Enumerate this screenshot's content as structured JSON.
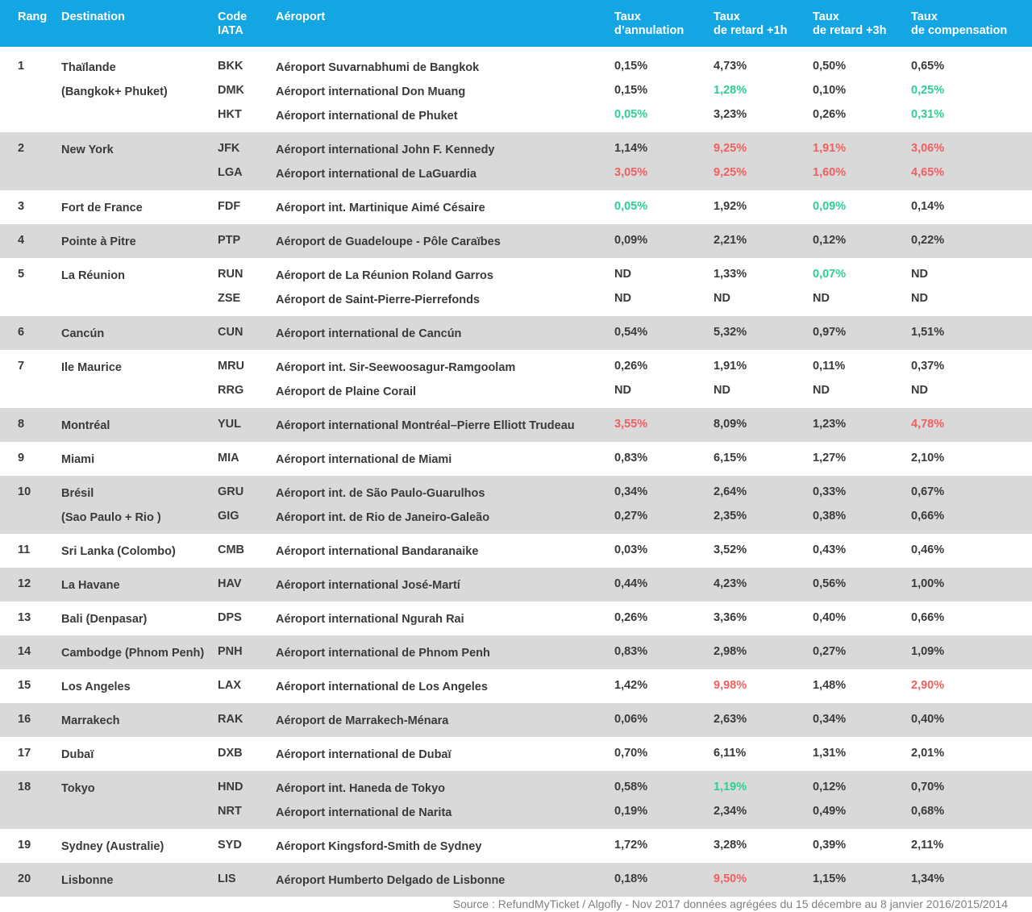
{
  "header": {
    "rang": "Rang",
    "destination": "Destination",
    "code_line1": "Code",
    "code_line2": "IATA",
    "aeroport": "Aéroport",
    "annulation_line1": "Taux",
    "annulation_line2": "d’annulation",
    "retard1h_line1": "Taux",
    "retard1h_line2": "de retard +1h",
    "retard3h_line1": "Taux",
    "retard3h_line2": "de retard +3h",
    "compensation_line1": "Taux",
    "compensation_line2": "de compensation"
  },
  "colors": {
    "header_bg": "#14a6e3",
    "shaded_row": "#d9d9d9",
    "good": "#2ecf91",
    "bad": "#f06060",
    "text": "#3a3a3a"
  },
  "groups": [
    {
      "rank": "1",
      "destination": [
        "Thaïlande",
        "(Bangkok+ Phuket)"
      ],
      "shaded": false,
      "rows": [
        {
          "code": "BKK",
          "airport": "Aéroport Suvarnabhumi de Bangkok",
          "annulation": "0,15%",
          "retard1h": "4,73%",
          "retard3h": "0,50%",
          "compensation": "0,65%",
          "hl": {}
        },
        {
          "code": "DMK",
          "airport": "Aéroport international Don Muang",
          "annulation": "0,15%",
          "retard1h": "1,28%",
          "retard3h": "0,10%",
          "compensation": "0,25%",
          "hl": {
            "retard1h": "green",
            "compensation": "green"
          }
        },
        {
          "code": "HKT",
          "airport": "Aéroport international de Phuket",
          "annulation": "0,05%",
          "retard1h": "3,23%",
          "retard3h": "0,26%",
          "compensation": "0,31%",
          "hl": {
            "annulation": "green",
            "compensation": "green"
          }
        }
      ]
    },
    {
      "rank": "2",
      "destination": [
        "New York"
      ],
      "shaded": true,
      "rows": [
        {
          "code": "JFK",
          "airport": "Aéroport international John F. Kennedy",
          "annulation": "1,14%",
          "retard1h": "9,25%",
          "retard3h": "1,91%",
          "compensation": "3,06%",
          "hl": {
            "retard1h": "red",
            "retard3h": "red",
            "compensation": "red"
          }
        },
        {
          "code": "LGA",
          "airport": "Aéroport international de LaGuardia",
          "annulation": "3,05%",
          "retard1h": "9,25%",
          "retard3h": "1,60%",
          "compensation": "4,65%",
          "hl": {
            "annulation": "red",
            "retard1h": "red",
            "retard3h": "red",
            "compensation": "red"
          }
        }
      ]
    },
    {
      "rank": "3",
      "destination": [
        "Fort de France"
      ],
      "shaded": false,
      "rows": [
        {
          "code": "FDF",
          "airport": "Aéroport int. Martinique Aimé Césaire",
          "annulation": "0,05%",
          "retard1h": "1,92%",
          "retard3h": "0,09%",
          "compensation": "0,14%",
          "hl": {
            "annulation": "green",
            "retard3h": "green"
          }
        }
      ]
    },
    {
      "rank": "4",
      "destination": [
        "Pointe à Pitre"
      ],
      "shaded": true,
      "rows": [
        {
          "code": "PTP",
          "airport": "Aéroport de Guadeloupe - Pôle Caraïbes",
          "annulation": "0,09%",
          "retard1h": "2,21%",
          "retard3h": "0,12%",
          "compensation": "0,22%",
          "hl": {}
        }
      ]
    },
    {
      "rank": "5",
      "destination": [
        "La Réunion"
      ],
      "shaded": false,
      "rows": [
        {
          "code": "RUN",
          "airport": "Aéroport de La Réunion Roland Garros",
          "annulation": "ND",
          "retard1h": "1,33%",
          "retard3h": "0,07%",
          "compensation": "ND",
          "hl": {
            "retard3h": "green"
          }
        },
        {
          "code": "ZSE",
          "airport": "Aéroport de Saint-Pierre-Pierrefonds",
          "annulation": "ND",
          "retard1h": "ND",
          "retard3h": "ND",
          "compensation": "ND",
          "hl": {}
        }
      ]
    },
    {
      "rank": "6",
      "destination": [
        "Cancún"
      ],
      "shaded": true,
      "rows": [
        {
          "code": "CUN",
          "airport": "Aéroport international de Cancún",
          "annulation": "0,54%",
          "retard1h": "5,32%",
          "retard3h": "0,97%",
          "compensation": "1,51%",
          "hl": {}
        }
      ]
    },
    {
      "rank": "7",
      "destination": [
        "Ile Maurice"
      ],
      "shaded": false,
      "rows": [
        {
          "code": "MRU",
          "airport": "Aéroport int. Sir-Seewoosagur-Ramgoolam",
          "annulation": "0,26%",
          "retard1h": "1,91%",
          "retard3h": "0,11%",
          "compensation": "0,37%",
          "hl": {}
        },
        {
          "code": "RRG",
          "airport": "Aéroport de Plaine Corail",
          "annulation": "ND",
          "retard1h": "ND",
          "retard3h": "ND",
          "compensation": "ND",
          "hl": {}
        }
      ]
    },
    {
      "rank": "8",
      "destination": [
        "Montréal"
      ],
      "shaded": true,
      "rows": [
        {
          "code": "YUL",
          "airport": "Aéroport international Montréal–Pierre Elliott Trudeau",
          "annulation": "3,55%",
          "retard1h": "8,09%",
          "retard3h": "1,23%",
          "compensation": "4,78%",
          "hl": {
            "annulation": "red",
            "compensation": "red"
          }
        }
      ]
    },
    {
      "rank": "9",
      "destination": [
        "Miami"
      ],
      "shaded": false,
      "rows": [
        {
          "code": "MIA",
          "airport": "Aéroport international de Miami",
          "annulation": "0,83%",
          "retard1h": "6,15%",
          "retard3h": "1,27%",
          "compensation": "2,10%",
          "hl": {}
        }
      ]
    },
    {
      "rank": "10",
      "destination": [
        "Brésil",
        "(Sao Paulo + Rio )"
      ],
      "shaded": true,
      "rows": [
        {
          "code": "GRU",
          "airport": "Aéroport int. de São Paulo-Guarulhos",
          "annulation": "0,34%",
          "retard1h": "2,64%",
          "retard3h": "0,33%",
          "compensation": "0,67%",
          "hl": {}
        },
        {
          "code": "GIG",
          "airport": "Aéroport int. de Rio de Janeiro-Galeão",
          "annulation": "0,27%",
          "retard1h": "2,35%",
          "retard3h": "0,38%",
          "compensation": "0,66%",
          "hl": {}
        }
      ]
    },
    {
      "rank": "11",
      "destination": [
        "Sri Lanka (Colombo)"
      ],
      "shaded": false,
      "rows": [
        {
          "code": "CMB",
          "airport": "Aéroport international Bandaranaike",
          "annulation": "0,03%",
          "retard1h": "3,52%",
          "retard3h": "0,43%",
          "compensation": "0,46%",
          "hl": {}
        }
      ]
    },
    {
      "rank": "12",
      "destination": [
        "La Havane"
      ],
      "shaded": true,
      "rows": [
        {
          "code": "HAV",
          "airport": "Aéroport international José-Martí",
          "annulation": "0,44%",
          "retard1h": "4,23%",
          "retard3h": "0,56%",
          "compensation": "1,00%",
          "hl": {}
        }
      ]
    },
    {
      "rank": "13",
      "destination": [
        "Bali (Denpasar)"
      ],
      "shaded": false,
      "rows": [
        {
          "code": "DPS",
          "airport": "Aéroport international Ngurah Rai",
          "annulation": "0,26%",
          "retard1h": "3,36%",
          "retard3h": "0,40%",
          "compensation": "0,66%",
          "hl": {}
        }
      ]
    },
    {
      "rank": "14",
      "destination": [
        "Cambodge (Phnom Penh)"
      ],
      "shaded": true,
      "rows": [
        {
          "code": "PNH",
          "airport": "Aéroport international de Phnom Penh",
          "annulation": "0,83%",
          "retard1h": "2,98%",
          "retard3h": "0,27%",
          "compensation": "1,09%",
          "hl": {}
        }
      ]
    },
    {
      "rank": "15",
      "destination": [
        "Los Angeles"
      ],
      "shaded": false,
      "rows": [
        {
          "code": "LAX",
          "airport": "Aéroport international de Los Angeles",
          "annulation": "1,42%",
          "retard1h": "9,98%",
          "retard3h": "1,48%",
          "compensation": "2,90%",
          "hl": {
            "retard1h": "red",
            "compensation": "red"
          }
        }
      ]
    },
    {
      "rank": "16",
      "destination": [
        "Marrakech"
      ],
      "shaded": true,
      "rows": [
        {
          "code": "RAK",
          "airport": "Aéroport de Marrakech-Ménara",
          "annulation": "0,06%",
          "retard1h": "2,63%",
          "retard3h": "0,34%",
          "compensation": "0,40%",
          "hl": {}
        }
      ]
    },
    {
      "rank": "17",
      "destination": [
        "Dubaï"
      ],
      "shaded": false,
      "rows": [
        {
          "code": "DXB",
          "airport": "Aéroport international de Dubaï",
          "annulation": "0,70%",
          "retard1h": "6,11%",
          "retard3h": "1,31%",
          "compensation": "2,01%",
          "hl": {}
        }
      ]
    },
    {
      "rank": "18",
      "destination": [
        "Tokyo"
      ],
      "shaded": true,
      "rows": [
        {
          "code": "HND",
          "airport": "Aéroport int. Haneda de Tokyo",
          "annulation": "0,58%",
          "retard1h": "1,19%",
          "retard3h": "0,12%",
          "compensation": "0,70%",
          "hl": {
            "retard1h": "green"
          }
        },
        {
          "code": "NRT",
          "airport": "Aéroport international de Narita",
          "annulation": "0,19%",
          "retard1h": "2,34%",
          "retard3h": "0,49%",
          "compensation": "0,68%",
          "hl": {}
        }
      ]
    },
    {
      "rank": "19",
      "destination": [
        "Sydney (Australie)"
      ],
      "shaded": false,
      "rows": [
        {
          "code": "SYD",
          "airport": "Aéroport Kingsford-Smith de Sydney",
          "annulation": "1,72%",
          "retard1h": "3,28%",
          "retard3h": "0,39%",
          "compensation": "2,11%",
          "hl": {}
        }
      ]
    },
    {
      "rank": "20",
      "destination": [
        "Lisbonne"
      ],
      "shaded": true,
      "rows": [
        {
          "code": "LIS",
          "airport": "Aéroport Humberto Delgado de Lisbonne",
          "annulation": "0,18%",
          "retard1h": "9,50%",
          "retard3h": "1,15%",
          "compensation": "1,34%",
          "hl": {
            "retard1h": "red"
          }
        }
      ]
    }
  ],
  "source": "Source : RefundMyTicket / Algofly - Nov 2017 données agrégées du 15 décembre au 8 janvier 2016/2015/2014"
}
